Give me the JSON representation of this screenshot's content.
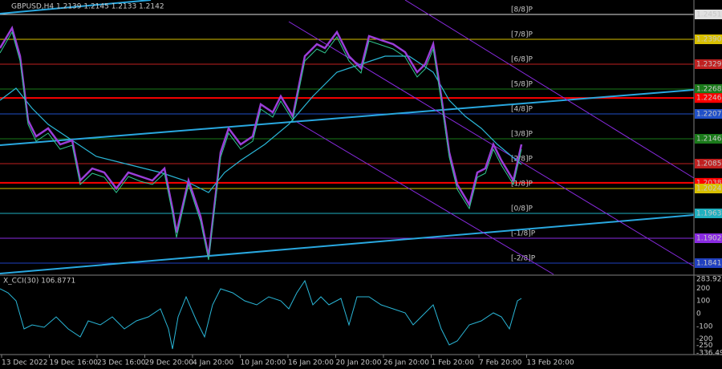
{
  "header": {
    "symbol": "GBPUSD,H4",
    "quote": "1.2139 1.2145 1.2133 1.2142"
  },
  "price_levels": [
    {
      "price": "1.2451",
      "tag": "[8/8]P",
      "color": "#e0e0e0"
    },
    {
      "price": "1.2390",
      "tag": "[7/8]P",
      "color": "#d8c000"
    },
    {
      "price": "1.2329",
      "tag": "[6/8]P",
      "color": "#c02020"
    },
    {
      "price": "1.2268",
      "tag": "[5/8]P",
      "color": "#1a7a1a"
    },
    {
      "price": "1.2246",
      "color": "#ff0000"
    },
    {
      "price": "1.2207",
      "tag": "[4/8]P",
      "color": "#2050c8"
    },
    {
      "price": "1.2146",
      "tag": "[3/8]P",
      "color": "#1a7a1a"
    },
    {
      "price": "1.2085",
      "tag": "[2/8]P",
      "color": "#c02020"
    },
    {
      "price": "1.2038",
      "color": "#ff0000"
    },
    {
      "price": "1.2024",
      "tag": "[1/8]P",
      "color": "#d8c000"
    },
    {
      "price": "1.1963",
      "tag": "[0/8]P",
      "color": "#20b0c0"
    },
    {
      "price": "1.1902",
      "tag": "[-1/8]P",
      "color": "#8a2be2"
    },
    {
      "price": "1.1841",
      "tag": "[-2/8]P",
      "color": "#2040c0"
    }
  ],
  "indicator": {
    "label": "X_CCI(30) 106.8771",
    "ticks": [
      "283.9211",
      "200",
      "100",
      "0",
      "-100",
      "-200",
      "-250",
      "-336.4986"
    ]
  },
  "time_axis": [
    "13 Dec 2022",
    "19 Dec 16:00",
    "23 Dec 16:00",
    "29 Dec 20:00",
    "4 Jan 20:00",
    "10 Jan 20:00",
    "16 Jan 20:00",
    "20 Jan 20:00",
    "26 Jan 20:00",
    "1 Feb 20:00",
    "7 Feb 20:00",
    "13 Feb 20:00"
  ]
}
